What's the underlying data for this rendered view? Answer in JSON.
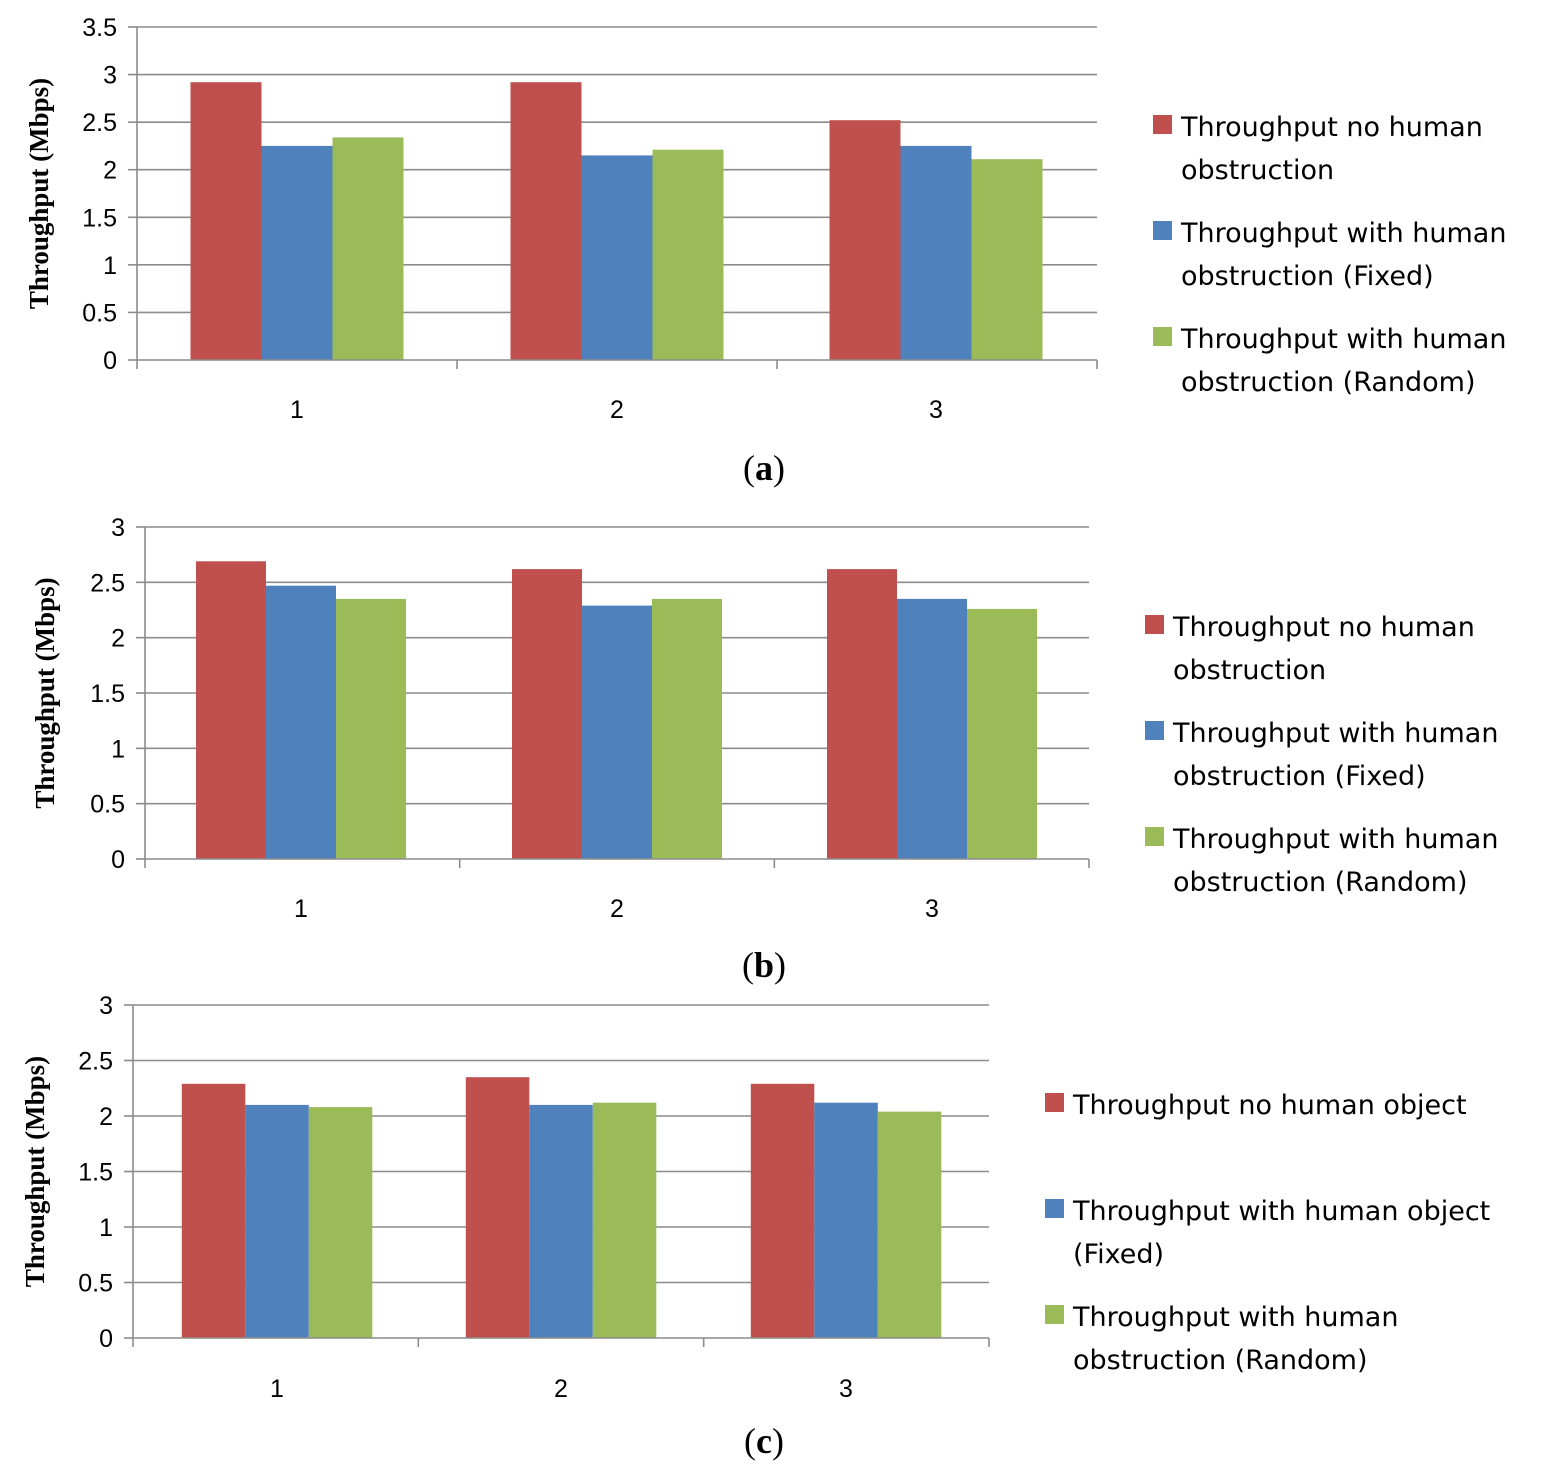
{
  "colors": {
    "no_human": "#c0504d",
    "fixed": "#4f81bd",
    "random": "#9bbb59",
    "grid": "#8c8c8c"
  },
  "chart_data": [
    {
      "type": "bar",
      "caption_letter": "a",
      "categories": [
        "1",
        "2",
        "3"
      ],
      "ylabel": "Throughput (Mbps)",
      "xlabel": "",
      "ylim": [
        0,
        3.5
      ],
      "yticks": [
        "0",
        "0.5",
        "1",
        "1.5",
        "2",
        "2.5",
        "3",
        "3.5"
      ],
      "grid": true,
      "legend_position": "right",
      "series": [
        {
          "name": "Throughput no human obstruction",
          "legend_lines": [
            "Throughput no human",
            "obstruction"
          ],
          "color_key": "no_human",
          "values": [
            2.92,
            2.92,
            2.52
          ]
        },
        {
          "name": "Throughput with human obstruction (Fixed)",
          "legend_lines": [
            "Throughput with human",
            "obstruction (Fixed)"
          ],
          "color_key": "fixed",
          "values": [
            2.25,
            2.15,
            2.25
          ]
        },
        {
          "name": "Throughput with human obstruction (Random)",
          "legend_lines": [
            "Throughput with human",
            "obstruction (Random)"
          ],
          "color_key": "random",
          "values": [
            2.34,
            2.21,
            2.11
          ]
        }
      ]
    },
    {
      "type": "bar",
      "caption_letter": "b",
      "categories": [
        "1",
        "2",
        "3"
      ],
      "ylabel": "Throughput (Mbps)",
      "xlabel": "",
      "ylim": [
        0,
        3
      ],
      "yticks": [
        "0",
        "0.5",
        "1",
        "1.5",
        "2",
        "2.5",
        "3"
      ],
      "grid": true,
      "legend_position": "right",
      "series": [
        {
          "name": "Throughput no human obstruction",
          "legend_lines": [
            "Throughput no human",
            "obstruction"
          ],
          "color_key": "no_human",
          "values": [
            2.69,
            2.62,
            2.62
          ]
        },
        {
          "name": "Throughput with human obstruction (Fixed)",
          "legend_lines": [
            "Throughput with human",
            "obstruction (Fixed)"
          ],
          "color_key": "fixed",
          "values": [
            2.47,
            2.29,
            2.35
          ]
        },
        {
          "name": "Throughput with human obstruction (Random)",
          "legend_lines": [
            "Throughput with human",
            "obstruction (Random)"
          ],
          "color_key": "random",
          "values": [
            2.35,
            2.35,
            2.26
          ]
        }
      ]
    },
    {
      "type": "bar",
      "caption_letter": "c",
      "categories": [
        "1",
        "2",
        "3"
      ],
      "ylabel": "Throughput (Mbps)",
      "xlabel": "",
      "ylim": [
        0,
        3
      ],
      "yticks": [
        "0",
        "0.5",
        "1",
        "1.5",
        "2",
        "2.5",
        "3"
      ],
      "grid": true,
      "legend_position": "right",
      "series": [
        {
          "name": "Throughput no human object",
          "legend_lines": [
            "Throughput no human object"
          ],
          "color_key": "no_human",
          "values": [
            2.29,
            2.35,
            2.29
          ]
        },
        {
          "name": "Throughput with human object (Fixed)",
          "legend_lines": [
            "Throughput with human object",
            "(Fixed)"
          ],
          "color_key": "fixed",
          "values": [
            2.1,
            2.1,
            2.12
          ]
        },
        {
          "name": "Throughput with human obstruction (Random)",
          "legend_lines": [
            "Throughput with human",
            "obstruction (Random)"
          ],
          "color_key": "random",
          "values": [
            2.08,
            2.12,
            2.04
          ]
        }
      ]
    }
  ]
}
